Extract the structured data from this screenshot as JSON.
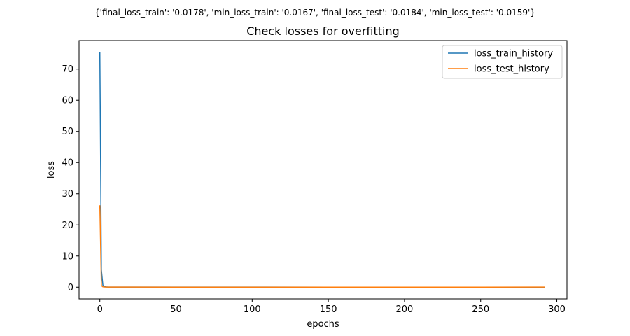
{
  "suptitle": "{'final_loss_train': '0.0178', 'min_loss_train': '0.0167', 'final_loss_test': '0.0184', 'min_loss_test': '0.0159'}",
  "chart_data": {
    "type": "line",
    "title": "Check losses for overfitting",
    "xlabel": "epochs",
    "ylabel": "loss",
    "xlim": [
      -13.65,
      306.65
    ],
    "ylim": [
      -3.76,
      79.15
    ],
    "xticks": [
      0,
      50,
      100,
      150,
      200,
      250,
      300
    ],
    "yticks": [
      0,
      10,
      20,
      30,
      40,
      50,
      60,
      70
    ],
    "grid": false,
    "legend_position": "upper right",
    "series": [
      {
        "name": "loss_train_history",
        "color": "#1f77b4",
        "x": [
          0,
          1,
          2,
          3,
          4,
          5,
          6,
          8,
          10,
          20,
          50,
          100,
          150,
          200,
          250,
          292
        ],
        "y": [
          75.4,
          5.6,
          0.6,
          0.15,
          0.08,
          0.05,
          0.04,
          0.03,
          0.025,
          0.022,
          0.02,
          0.019,
          0.018,
          0.018,
          0.018,
          0.0178
        ]
      },
      {
        "name": "loss_test_history",
        "color": "#ff7f0e",
        "x": [
          0,
          1,
          2,
          3,
          4,
          5,
          6,
          8,
          10,
          20,
          50,
          100,
          150,
          200,
          250,
          292
        ],
        "y": [
          26.3,
          0.5,
          0.12,
          0.06,
          0.04,
          0.03,
          0.025,
          0.022,
          0.02,
          0.019,
          0.018,
          0.018,
          0.0175,
          0.018,
          0.018,
          0.0184
        ]
      }
    ]
  }
}
